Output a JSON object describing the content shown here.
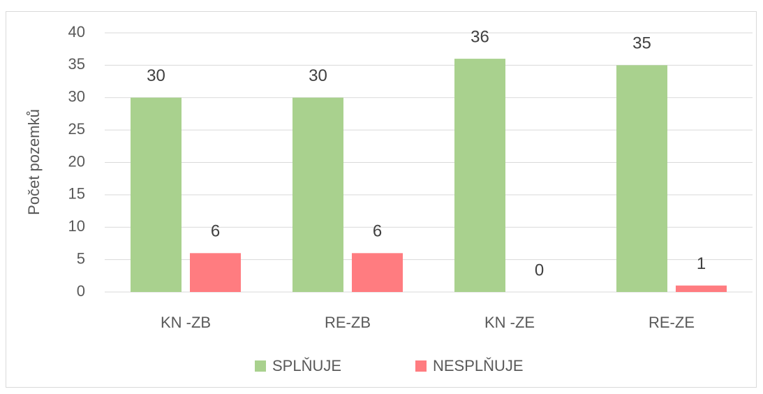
{
  "chart_data": {
    "type": "bar",
    "y_label": "Počet pozemků",
    "categories": [
      "KN -ZB",
      "RE-ZB",
      "KN -ZE",
      "RE-ZE"
    ],
    "series": [
      {
        "name": "SPLŇUJE",
        "color": "#a9d18e",
        "values": [
          30,
          30,
          36,
          35
        ]
      },
      {
        "name": "NESPLŇUJE",
        "color": "#ff7c80",
        "values": [
          6,
          6,
          0,
          1
        ]
      }
    ],
    "ylim": [
      0,
      40
    ],
    "yticks": [
      0,
      5,
      10,
      15,
      20,
      25,
      30,
      35,
      40
    ],
    "grid": true,
    "legend": "bottom",
    "data_labels": true
  }
}
